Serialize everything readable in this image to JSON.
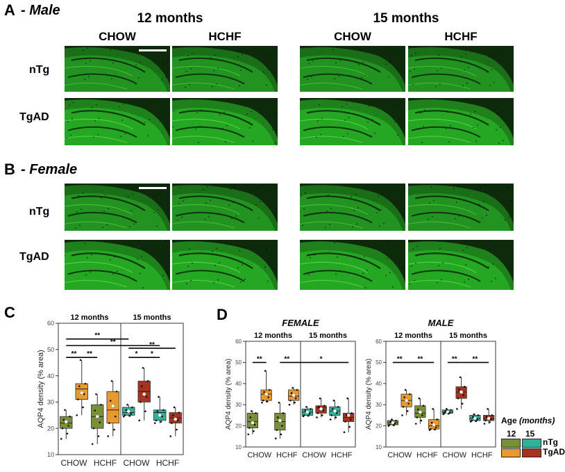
{
  "panelA": {
    "letter": "A",
    "title": "- Male"
  },
  "panelB": {
    "letter": "B",
    "title": "- Female"
  },
  "ages": [
    "12 months",
    "15 months"
  ],
  "diets": [
    "CHOW",
    "HCHF",
    "CHOW",
    "HCHF"
  ],
  "genotypes": [
    "nTg",
    "TgAD"
  ],
  "panelC": {
    "letter": "C"
  },
  "panelD": {
    "letter": "D"
  },
  "colors": {
    "nTg12": "#7a8f3a",
    "nTg15": "#2fb19a",
    "TgAD12": "#e89a2e",
    "TgAD15": "#a8321f",
    "tissue": "#2fd12c"
  },
  "chart_data": [
    {
      "id": "C",
      "type": "box",
      "title": "",
      "xlabel": "",
      "ylabel": "AQP4 density (% area)",
      "ylim": [
        10,
        60
      ],
      "yticks": [
        10,
        20,
        30,
        40,
        50,
        60
      ],
      "group_labels": [
        "12 months",
        "15 months"
      ],
      "categories": [
        "CHOW",
        "HCHF",
        "CHOW",
        "HCHF"
      ],
      "boxes": [
        {
          "age": "12",
          "diet": "CHOW",
          "genotype": "nTg",
          "min": 16,
          "q1": 20,
          "median": 22,
          "q3": 24.5,
          "max": 27,
          "mean": 22.5
        },
        {
          "age": "12",
          "diet": "CHOW",
          "genotype": "TgAD",
          "min": 25,
          "q1": 31,
          "median": 35,
          "q3": 37,
          "max": 46,
          "mean": 33.5
        },
        {
          "age": "12",
          "diet": "HCHF",
          "genotype": "nTg",
          "min": 14,
          "q1": 20,
          "median": 24.5,
          "q3": 29,
          "max": 33,
          "mean": 24.5
        },
        {
          "age": "12",
          "diet": "HCHF",
          "genotype": "TgAD",
          "min": 17,
          "q1": 22,
          "median": 27,
          "q3": 34,
          "max": 38,
          "mean": 28.5
        },
        {
          "age": "15",
          "diet": "CHOW",
          "genotype": "nTg",
          "min": 24.5,
          "q1": 25,
          "median": 26,
          "q3": 28,
          "max": 29,
          "mean": 26.5
        },
        {
          "age": "15",
          "diet": "CHOW",
          "genotype": "TgAD",
          "min": 23,
          "q1": 30,
          "median": 34,
          "q3": 38,
          "max": 43,
          "mean": 33
        },
        {
          "age": "15",
          "diet": "HCHF",
          "genotype": "nTg",
          "min": 22,
          "q1": 23,
          "median": 26,
          "q3": 27,
          "max": 32,
          "mean": 25
        },
        {
          "age": "15",
          "diet": "HCHF",
          "genotype": "TgAD",
          "min": 17,
          "q1": 22,
          "median": 24,
          "q3": 26,
          "max": 28,
          "mean": 23.5
        }
      ],
      "significance": [
        "**",
        "**",
        "**",
        "**",
        "*",
        "*",
        "**"
      ]
    },
    {
      "id": "D-female",
      "type": "box",
      "title": "FEMALE",
      "xlabel": "",
      "ylabel": "AQP4 density (% area)",
      "ylim": [
        10,
        60
      ],
      "yticks": [
        10,
        20,
        30,
        40,
        50,
        60
      ],
      "group_labels": [
        "12 months",
        "15 months"
      ],
      "categories": [
        "CHOW",
        "HCHF",
        "CHOW",
        "HCHF"
      ],
      "boxes": [
        {
          "age": "12",
          "diet": "CHOW",
          "genotype": "nTg",
          "min": 16,
          "q1": 19,
          "median": 22,
          "q3": 26,
          "max": 27,
          "mean": 21.5
        },
        {
          "age": "12",
          "diet": "CHOW",
          "genotype": "TgAD",
          "min": 31,
          "q1": 32,
          "median": 35,
          "q3": 37,
          "max": 46,
          "mean": 35
        },
        {
          "age": "12",
          "diet": "HCHF",
          "genotype": "nTg",
          "min": 14,
          "q1": 18,
          "median": 22,
          "q3": 26,
          "max": 31,
          "mean": 22.5
        },
        {
          "age": "12",
          "diet": "HCHF",
          "genotype": "TgAD",
          "min": 30,
          "q1": 32,
          "median": 34,
          "q3": 37,
          "max": 38,
          "mean": 34.5
        },
        {
          "age": "15",
          "diet": "CHOW",
          "genotype": "nTg",
          "min": 24.5,
          "q1": 25,
          "median": 26.5,
          "q3": 28,
          "max": 29,
          "mean": 26.5
        },
        {
          "age": "15",
          "diet": "CHOW",
          "genotype": "TgAD",
          "min": 24,
          "q1": 26,
          "median": 28.5,
          "q3": 29.5,
          "max": 33,
          "mean": 28
        },
        {
          "age": "15",
          "diet": "HCHF",
          "genotype": "nTg",
          "min": 23,
          "q1": 25,
          "median": 27,
          "q3": 29,
          "max": 32,
          "mean": 27
        },
        {
          "age": "15",
          "diet": "HCHF",
          "genotype": "TgAD",
          "min": 17,
          "q1": 22,
          "median": 24,
          "q3": 26,
          "max": 33,
          "mean": 25
        }
      ],
      "significance": [
        "**",
        "**",
        "*"
      ]
    },
    {
      "id": "D-male",
      "type": "box",
      "title": "MALE",
      "xlabel": "",
      "ylabel": "AQP4 density (% area)",
      "ylim": [
        10,
        60
      ],
      "yticks": [
        10,
        20,
        30,
        40,
        50,
        60
      ],
      "group_labels": [
        "12 months",
        "15 months"
      ],
      "categories": [
        "CHOW",
        "HCHF",
        "CHOW",
        "HCHF"
      ],
      "boxes": [
        {
          "age": "12",
          "diet": "CHOW",
          "genotype": "nTg",
          "min": 20,
          "q1": 20.5,
          "median": 21.5,
          "q3": 22.5,
          "max": 23,
          "mean": 21.5
        },
        {
          "age": "12",
          "diet": "CHOW",
          "genotype": "TgAD",
          "min": 25,
          "q1": 29,
          "median": 32,
          "q3": 35,
          "max": 37,
          "mean": 32
        },
        {
          "age": "12",
          "diet": "HCHF",
          "genotype": "nTg",
          "min": 21,
          "q1": 24,
          "median": 26,
          "q3": 29.5,
          "max": 33,
          "mean": 26.5
        },
        {
          "age": "12",
          "diet": "HCHF",
          "genotype": "TgAD",
          "min": 18,
          "q1": 18.5,
          "median": 20,
          "q3": 23,
          "max": 28,
          "mean": 20.5
        },
        {
          "age": "15",
          "diet": "CHOW",
          "genotype": "nTg",
          "min": 25.5,
          "q1": 26,
          "median": 26.5,
          "q3": 27.5,
          "max": 28,
          "mean": 26.5
        },
        {
          "age": "15",
          "diet": "CHOW",
          "genotype": "TgAD",
          "min": 28,
          "q1": 33,
          "median": 36,
          "q3": 38.5,
          "max": 43,
          "mean": 36
        },
        {
          "age": "15",
          "diet": "HCHF",
          "genotype": "nTg",
          "min": 22,
          "q1": 22.5,
          "median": 23.5,
          "q3": 25,
          "max": 25.5,
          "mean": 23.5
        },
        {
          "age": "15",
          "diet": "HCHF",
          "genotype": "TgAD",
          "min": 21,
          "q1": 22.5,
          "median": 23.5,
          "q3": 25,
          "max": 28,
          "mean": 23.5
        }
      ],
      "significance": [
        "**",
        "**",
        "**",
        "**"
      ]
    }
  ],
  "legend": {
    "title": "Age",
    "title_unit": "(months)",
    "col_12": "12",
    "col_15": "15",
    "row_ntg": "nTg",
    "row_tgad": "TgAD"
  }
}
